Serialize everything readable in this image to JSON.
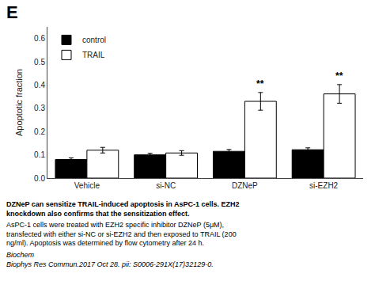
{
  "chart_data": {
    "type": "bar",
    "title": "E",
    "categories": [
      "Vehicle",
      "si-NC",
      "DZNeP",
      "si-EZH2"
    ],
    "series": [
      {
        "name": "control",
        "color": "black",
        "values": [
          0.08,
          0.1,
          0.115,
          0.122
        ],
        "errors": [
          0.007,
          0.007,
          0.008,
          0.008
        ]
      },
      {
        "name": "TRAIL",
        "color": "white",
        "values": [
          0.12,
          0.108,
          0.33,
          0.362
        ],
        "errors": [
          0.012,
          0.01,
          0.038,
          0.04
        ]
      }
    ],
    "ylabel": "Apoptotic fraction",
    "ylim": [
      0,
      0.65
    ],
    "yticks": [
      {
        "value": 0,
        "label": "0.0"
      },
      0.1,
      0.2,
      0.3,
      0.4,
      0.5,
      0.6
    ],
    "grid": false,
    "legend": "upper left",
    "annotations": [
      {
        "text": "**",
        "category": "DZNeP",
        "series": "TRAIL"
      },
      {
        "text": "**",
        "category": "si-EZH2",
        "series": "TRAIL"
      }
    ],
    "caption": [
      "DZNeP can sensitize TRAIL-induced apoptosis in AsPC-1 cells. EZH2\nknockdown also confirms that the sensitization effect.",
      "AsPC-1 cells were treated with EZH2 specific inhibitor DZNeP (5μM),\ntransfected with either si-NC or si-EZH2 and then exposed to TRAIL (200\nng/ml). Apoptosis was determined by flow cytometry after 24 h. ",
      "Biochem\nBiophys Res Commun.2017 Oct 28. pii: S0006-291X(17)32129-0."
    ]
  }
}
